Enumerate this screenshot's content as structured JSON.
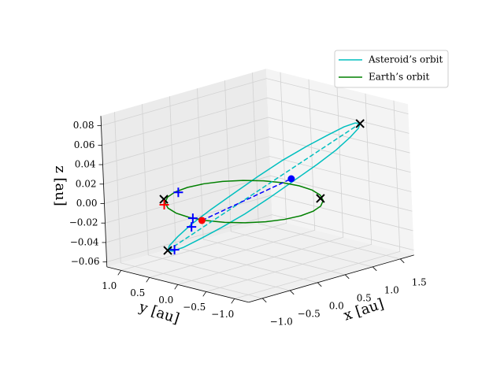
{
  "chart_data": {
    "type": "line3d",
    "legend": "upper right",
    "grid": true,
    "xlabel": "x [au]",
    "ylabel": "y [au]",
    "zlabel": "z [au]",
    "xlim": [
      -1.25,
      1.75
    ],
    "ylim": [
      -1.25,
      1.25
    ],
    "zlim": [
      -0.065,
      0.09
    ],
    "xticks": [
      {
        "value": -1.0,
        "label": "−1.0"
      },
      {
        "value": -0.5,
        "label": "−0.5"
      },
      {
        "value": 0.0,
        "label": "0.0"
      },
      {
        "value": 0.5,
        "label": "0.5"
      },
      {
        "value": 1.0,
        "label": "1.0"
      },
      {
        "value": 1.5,
        "label": "1.5"
      }
    ],
    "yticks": [
      {
        "value": 1.0,
        "label": "1.0"
      },
      {
        "value": 0.5,
        "label": "0.5"
      },
      {
        "value": 0.0,
        "label": "0.0"
      },
      {
        "value": -0.5,
        "label": "−0.5"
      },
      {
        "value": -1.0,
        "label": "−1.0"
      }
    ],
    "zticks": [
      {
        "value": -0.06,
        "label": "−0.06"
      },
      {
        "value": -0.04,
        "label": "−0.04"
      },
      {
        "value": -0.02,
        "label": "−0.02"
      },
      {
        "value": 0.0,
        "label": "0.00"
      },
      0.02,
      0.04,
      0.06,
      0.08
    ],
    "series": [
      {
        "name": "Asteroid’s orbit",
        "color": "#00bfbf",
        "style": "solid",
        "x": [
          1.34,
          1.384,
          1.355,
          1.258,
          1.098,
          0.885,
          0.635,
          0.365,
          0.092,
          -0.164,
          -0.385,
          -0.558,
          -0.67,
          -0.714,
          -0.685,
          -0.588,
          -0.428,
          -0.215,
          0.035,
          0.305,
          0.578,
          0.834,
          1.055,
          1.228,
          1.34
        ],
        "y": [
          -0.79,
          -0.66,
          -0.488,
          -0.284,
          -0.064,
          0.159,
          0.37,
          0.553,
          0.696,
          0.79,
          0.828,
          0.808,
          0.73,
          0.6,
          0.428,
          0.224,
          0.004,
          -0.219,
          -0.43,
          -0.613,
          -0.756,
          -0.85,
          -0.888,
          -0.868,
          -0.79
        ],
        "z": [
          0.07,
          0.068,
          0.062,
          0.052,
          0.04,
          0.026,
          0.01,
          -0.006,
          -0.02,
          -0.032,
          -0.042,
          -0.048,
          -0.05,
          -0.048,
          -0.042,
          -0.032,
          -0.02,
          -0.006,
          0.01,
          0.026,
          0.04,
          0.052,
          0.062,
          0.068,
          0.07
        ]
      },
      {
        "name": "Earth’s orbit",
        "color": "#008000",
        "style": "solid",
        "x": [
          1,
          0.966,
          0.866,
          0.707,
          0.5,
          0.259,
          0,
          -0.259,
          -0.5,
          -0.707,
          -0.866,
          -0.966,
          -1,
          -0.966,
          -0.866,
          -0.707,
          -0.5,
          -0.259,
          0,
          0.259,
          0.5,
          0.707,
          0.866,
          0.966,
          1
        ],
        "y": [
          0,
          0.259,
          0.5,
          0.707,
          0.866,
          0.966,
          1,
          0.966,
          0.866,
          0.707,
          0.5,
          0.259,
          0,
          -0.259,
          -0.5,
          -0.707,
          -0.866,
          -0.966,
          -1,
          -0.966,
          -0.866,
          -0.707,
          -0.5,
          -0.259,
          0
        ],
        "z": [
          0,
          0,
          0,
          0,
          0,
          0,
          0,
          0,
          0,
          0,
          0,
          0,
          0,
          0,
          0,
          0,
          0,
          0,
          0,
          0,
          0,
          0,
          0,
          0,
          0
        ]
      },
      {
        "color": "#00bfbf",
        "style": "dashed",
        "x": [
          -0.67,
          1.34
        ],
        "y": [
          0.73,
          -0.79
        ],
        "z": [
          -0.05,
          0.07
        ]
      },
      {
        "color": "#0000ff",
        "style": "dashed",
        "x": [
          -0.67,
          0.52
        ],
        "y": [
          0.1,
          -0.34
        ],
        "z": [
          -0.01,
          0.02
        ]
      },
      {
        "color": "#000000",
        "marker": "x",
        "x": [
          1.34,
          -0.67,
          -0.6,
          0.753
        ],
        "y": [
          -0.79,
          0.73,
          0.833,
          -0.614
        ],
        "z": [
          0.07,
          -0.05,
          0,
          0
        ]
      },
      {
        "color": "#0000ff",
        "marker": "+",
        "x": [
          -0.57,
          -0.67,
          -0.65,
          -0.75
        ],
        "y": [
          0.6,
          0.26,
          0.31,
          0.53
        ],
        "z": [
          0.01,
          -0.01,
          -0.02,
          -0.045
        ]
      },
      {
        "color": "#ff0000",
        "marker": "+",
        "x": [
          -0.62
        ],
        "y": [
          0.81
        ],
        "z": [
          -0.005
        ]
      },
      {
        "color": "#ff0000",
        "marker": "o",
        "x": [
          -0.67
        ],
        "y": [
          0.1
        ],
        "z": [
          -0.01
        ]
      },
      {
        "color": "#0000ff",
        "marker": "o",
        "x": [
          0.52
        ],
        "y": [
          -0.34
        ],
        "z": [
          0.02
        ]
      }
    ]
  }
}
